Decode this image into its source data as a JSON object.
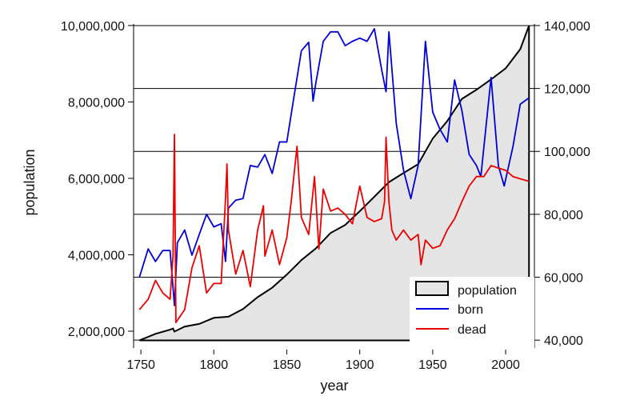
{
  "chart_data": {
    "type": "line",
    "xlabel": "year",
    "ylabel": "population",
    "xlim": [
      1745,
      2019.7
    ],
    "ylim_left": [
      1560000,
      10040000
    ],
    "ylim_right": [
      37500,
      140500
    ],
    "x_ticks": [
      1750,
      1800,
      1850,
      1900,
      1950,
      2000
    ],
    "x_tick_labels": [
      "1750",
      "1800",
      "1850",
      "1900",
      "1950",
      "2000"
    ],
    "left_ticks": [
      2000000,
      4000000,
      6000000,
      8000000,
      10000000
    ],
    "left_tick_labels": [
      "2,000,000",
      "4,000,000",
      "6,000,000",
      "8,000,000",
      "10,000,000"
    ],
    "right_ticks": [
      40000,
      60000,
      80000,
      100000,
      120000,
      140000
    ],
    "right_tick_labels": [
      "40,000",
      "60,000",
      "80,000",
      "100,000",
      "120,000",
      "140,000"
    ],
    "grid": "horizontal at right-axis ticks",
    "legend_position": "bottom-right",
    "colors": {
      "population_fill": "#e5e5e5",
      "population_line": "#000000",
      "born": "#0000dd",
      "dead": "#ee0000"
    },
    "series": [
      {
        "name": "population",
        "axis": "left",
        "style": "area",
        "x": [
          1749,
          1760,
          1770,
          1772,
          1773,
          1780,
          1790,
          1800,
          1810,
          1820,
          1830,
          1840,
          1850,
          1860,
          1870,
          1880,
          1890,
          1900,
          1910,
          1920,
          1930,
          1940,
          1950,
          1960,
          1970,
          1980,
          1990,
          2000,
          2010,
          2016
        ],
        "y": [
          1760000,
          1930000,
          2040000,
          2070000,
          1990000,
          2120000,
          2190000,
          2350000,
          2380000,
          2580000,
          2890000,
          3140000,
          3480000,
          3860000,
          4170000,
          4570000,
          4780000,
          5140000,
          5520000,
          5900000,
          6140000,
          6370000,
          7040000,
          7500000,
          8080000,
          8320000,
          8590000,
          8880000,
          9380000,
          9995000
        ]
      },
      {
        "name": "born",
        "axis": "right",
        "style": "line",
        "x": [
          1749,
          1755,
          1760,
          1765,
          1770,
          1773,
          1775,
          1780,
          1785,
          1790,
          1795,
          1800,
          1805,
          1808,
          1810,
          1815,
          1820,
          1825,
          1830,
          1835,
          1840,
          1845,
          1850,
          1855,
          1860,
          1865,
          1868,
          1870,
          1875,
          1880,
          1885,
          1890,
          1895,
          1900,
          1905,
          1910,
          1915,
          1918,
          1920,
          1925,
          1930,
          1935,
          1940,
          1945,
          1950,
          1955,
          1960,
          1965,
          1970,
          1975,
          1980,
          1983,
          1990,
          1995,
          1999,
          2005,
          2010,
          2016
        ],
        "y": [
          60000,
          69000,
          65000,
          68500,
          68500,
          51000,
          71000,
          75000,
          67000,
          73600,
          80000,
          76000,
          77000,
          65000,
          82000,
          84500,
          85000,
          95500,
          95000,
          99000,
          93000,
          103000,
          103000,
          117600,
          132000,
          134700,
          116000,
          122000,
          135000,
          138000,
          138000,
          133600,
          135000,
          136000,
          135000,
          139000,
          126000,
          119000,
          138000,
          109000,
          94000,
          85000,
          95500,
          135000,
          112500,
          107000,
          103000,
          122700,
          113000,
          99000,
          95500,
          92000,
          123500,
          95500,
          89000,
          101500,
          115000,
          117000
        ]
      },
      {
        "name": "dead",
        "axis": "right",
        "style": "line",
        "x": [
          1749,
          1755,
          1760,
          1765,
          1770,
          1772,
          1773,
          1774,
          1780,
          1785,
          1790,
          1795,
          1800,
          1805,
          1808,
          1809,
          1810,
          1815,
          1820,
          1825,
          1830,
          1834,
          1835,
          1840,
          1845,
          1850,
          1853,
          1857,
          1860,
          1865,
          1869,
          1872,
          1875,
          1880,
          1885,
          1890,
          1895,
          1900,
          1905,
          1910,
          1915,
          1917,
          1918,
          1920,
          1922,
          1925,
          1930,
          1935,
          1940,
          1942,
          1945,
          1950,
          1955,
          1960,
          1965,
          1970,
          1975,
          1980,
          1985,
          1990,
          1995,
          2000,
          2005,
          2010,
          2016
        ],
        "y": [
          49700,
          53000,
          59000,
          55000,
          53000,
          66700,
          105400,
          45600,
          49700,
          63000,
          70000,
          55000,
          58000,
          58000,
          85000,
          96000,
          75000,
          61000,
          68500,
          57000,
          75000,
          82700,
          66700,
          75000,
          64000,
          72600,
          84000,
          101600,
          79000,
          73600,
          92000,
          69000,
          88000,
          81000,
          82000,
          80000,
          77000,
          89000,
          79000,
          77700,
          78600,
          84000,
          104500,
          84000,
          75000,
          71800,
          75000,
          71800,
          73600,
          64000,
          71800,
          69200,
          70000,
          75000,
          78600,
          84000,
          89000,
          92000,
          92000,
          95500,
          94700,
          94000,
          92000,
          91300,
          90500
        ]
      }
    ]
  }
}
